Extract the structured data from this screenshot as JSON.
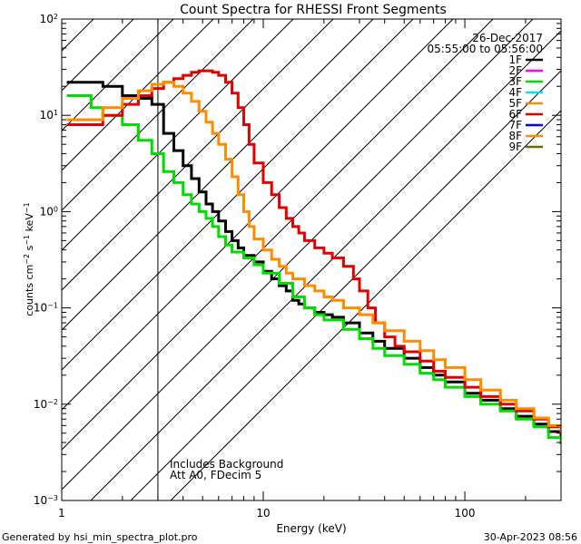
{
  "chart_data": {
    "type": "line",
    "title": "Count Spectra for RHESSI Front Segments",
    "xlabel": "Energy (keV)",
    "ylabel": "counts cm⁻² s⁻¹ keV⁻¹",
    "ylabel_parts": {
      "base": "counts cm",
      "e1": "−2",
      "mid": " s",
      "e2": "−1",
      "end": " keV",
      "e3": "−1"
    },
    "xscale": "log",
    "yscale": "log",
    "xlim": [
      1,
      300
    ],
    "ylim": [
      0.001,
      100
    ],
    "x_ticks": [
      {
        "value": 1,
        "label": "1"
      },
      {
        "value": 10,
        "label": "10"
      },
      {
        "value": 100,
        "label": "100"
      }
    ],
    "y_ticks": [
      {
        "value": 0.001,
        "base": "10",
        "exp": "−3"
      },
      {
        "value": 0.01,
        "base": "10",
        "exp": "−2"
      },
      {
        "value": 0.1,
        "base": "10",
        "exp": "−1"
      },
      {
        "value": 1,
        "base": "10",
        "exp": "0"
      },
      {
        "value": 10,
        "base": "10",
        "exp": "1"
      },
      {
        "value": 100,
        "base": "10",
        "exp": "2"
      }
    ],
    "hatched_region": {
      "x_from": 1,
      "x_to": 3
    },
    "date": "26-Dec-2017",
    "time_range": "05:55:00 to 05:56:00",
    "legend_position": "top-right",
    "legend": [
      {
        "label": "1F",
        "color": "#000000"
      },
      {
        "label": "2F",
        "color": "#ff00ff"
      },
      {
        "label": "3F",
        "color": "#00dd00"
      },
      {
        "label": "4F",
        "color": "#00e0ff"
      },
      {
        "label": "5F",
        "color": "#ff8c00"
      },
      {
        "label": "6F",
        "color": "#e00000"
      },
      {
        "label": "7F",
        "color": "#0000ee"
      },
      {
        "label": "8F",
        "color": "#ff8c00"
      },
      {
        "label": "9F",
        "color": "#6b6b00"
      }
    ],
    "annotations": [
      "Includes Background",
      "Att A0, FDecim 5"
    ],
    "series": [
      {
        "name": "1F",
        "color": "#000000",
        "points": [
          [
            1.2,
            22
          ],
          [
            1.6,
            20
          ],
          [
            2.0,
            16
          ],
          [
            2.4,
            15
          ],
          [
            2.8,
            13
          ],
          [
            3.2,
            6.5
          ],
          [
            3.6,
            4.3
          ],
          [
            4.0,
            3.0
          ],
          [
            4.4,
            2.2
          ],
          [
            4.8,
            1.6
          ],
          [
            5.2,
            1.2
          ],
          [
            5.6,
            1.0
          ],
          [
            6.0,
            0.8
          ],
          [
            6.5,
            0.62
          ],
          [
            7.0,
            0.5
          ],
          [
            7.5,
            0.42
          ],
          [
            8.0,
            0.35
          ],
          [
            9.0,
            0.3
          ],
          [
            10,
            0.24
          ],
          [
            11,
            0.2
          ],
          [
            12,
            0.17
          ],
          [
            13,
            0.15
          ],
          [
            14,
            0.12
          ],
          [
            15,
            0.11
          ],
          [
            16,
            0.1
          ],
          [
            18,
            0.09
          ],
          [
            20,
            0.085
          ],
          [
            22,
            0.08
          ],
          [
            25,
            0.07
          ],
          [
            30,
            0.055
          ],
          [
            35,
            0.045
          ],
          [
            40,
            0.038
          ],
          [
            50,
            0.03
          ],
          [
            60,
            0.024
          ],
          [
            70,
            0.02
          ],
          [
            80,
            0.017
          ],
          [
            100,
            0.013
          ],
          [
            120,
            0.011
          ],
          [
            150,
            0.009
          ],
          [
            180,
            0.0075
          ],
          [
            220,
            0.0062
          ],
          [
            260,
            0.0052
          ],
          [
            300,
            0.0045
          ]
        ]
      },
      {
        "name": "3F",
        "color": "#00dd00",
        "points": [
          [
            1.2,
            16
          ],
          [
            1.4,
            12
          ],
          [
            1.6,
            10
          ],
          [
            2.0,
            8
          ],
          [
            2.4,
            5.5
          ],
          [
            2.8,
            4.0
          ],
          [
            3.2,
            2.6
          ],
          [
            3.6,
            2.0
          ],
          [
            4.0,
            1.5
          ],
          [
            4.4,
            1.2
          ],
          [
            4.8,
            1.0
          ],
          [
            5.2,
            0.85
          ],
          [
            5.6,
            0.7
          ],
          [
            6.0,
            0.55
          ],
          [
            6.5,
            0.45
          ],
          [
            7.0,
            0.38
          ],
          [
            8.0,
            0.33
          ],
          [
            9.0,
            0.28
          ],
          [
            10,
            0.23
          ],
          [
            12,
            0.18
          ],
          [
            14,
            0.13
          ],
          [
            16,
            0.1
          ],
          [
            18,
            0.085
          ],
          [
            20,
            0.075
          ],
          [
            25,
            0.06
          ],
          [
            30,
            0.048
          ],
          [
            35,
            0.038
          ],
          [
            40,
            0.032
          ],
          [
            50,
            0.026
          ],
          [
            60,
            0.021
          ],
          [
            70,
            0.018
          ],
          [
            80,
            0.015
          ],
          [
            100,
            0.012
          ],
          [
            120,
            0.01
          ],
          [
            150,
            0.0085
          ],
          [
            180,
            0.007
          ],
          [
            220,
            0.0058
          ],
          [
            260,
            0.0045
          ],
          [
            300,
            0.0038
          ]
        ]
      },
      {
        "name": "6F",
        "color": "#e00000",
        "points": [
          [
            1.2,
            8
          ],
          [
            1.6,
            10
          ],
          [
            2.0,
            13
          ],
          [
            2.4,
            16
          ],
          [
            2.8,
            19
          ],
          [
            3.2,
            22
          ],
          [
            3.6,
            24
          ],
          [
            4.0,
            26
          ],
          [
            4.4,
            28
          ],
          [
            4.8,
            29
          ],
          [
            5.2,
            29
          ],
          [
            5.6,
            28
          ],
          [
            6.0,
            26
          ],
          [
            6.5,
            22
          ],
          [
            7.0,
            17
          ],
          [
            7.5,
            12
          ],
          [
            8.0,
            8
          ],
          [
            8.5,
            5
          ],
          [
            9.0,
            3.2
          ],
          [
            10,
            2.0
          ],
          [
            11,
            1.5
          ],
          [
            12,
            1.1
          ],
          [
            13,
            0.85
          ],
          [
            14,
            0.7
          ],
          [
            15,
            0.6
          ],
          [
            16,
            0.5
          ],
          [
            18,
            0.42
          ],
          [
            20,
            0.37
          ],
          [
            22,
            0.33
          ],
          [
            25,
            0.27
          ],
          [
            28,
            0.2
          ],
          [
            30,
            0.15
          ],
          [
            33,
            0.1
          ],
          [
            36,
            0.07
          ],
          [
            40,
            0.05
          ],
          [
            45,
            0.04
          ],
          [
            50,
            0.035
          ],
          [
            60,
            0.028
          ],
          [
            70,
            0.022
          ],
          [
            80,
            0.019
          ],
          [
            100,
            0.015
          ],
          [
            120,
            0.012
          ],
          [
            150,
            0.01
          ],
          [
            180,
            0.0085
          ],
          [
            220,
            0.007
          ],
          [
            260,
            0.0058
          ],
          [
            300,
            0.0048
          ]
        ]
      },
      {
        "name": "5F",
        "color": "#ff8c00",
        "points": [
          [
            1.2,
            9
          ],
          [
            1.6,
            12
          ],
          [
            2.0,
            15
          ],
          [
            2.4,
            18
          ],
          [
            2.8,
            21
          ],
          [
            3.2,
            22
          ],
          [
            3.6,
            20
          ],
          [
            4.0,
            17
          ],
          [
            4.4,
            14
          ],
          [
            4.8,
            11
          ],
          [
            5.2,
            8.5
          ],
          [
            5.6,
            6.5
          ],
          [
            6.0,
            5.0
          ],
          [
            6.5,
            3.5
          ],
          [
            7.0,
            2.3
          ],
          [
            7.5,
            1.5
          ],
          [
            8.0,
            1.0
          ],
          [
            8.5,
            0.7
          ],
          [
            9.0,
            0.52
          ],
          [
            10,
            0.4
          ],
          [
            11,
            0.32
          ],
          [
            12,
            0.27
          ],
          [
            13,
            0.23
          ],
          [
            14,
            0.2
          ],
          [
            16,
            0.17
          ],
          [
            18,
            0.15
          ],
          [
            20,
            0.13
          ],
          [
            22,
            0.12
          ],
          [
            25,
            0.1
          ],
          [
            30,
            0.085
          ],
          [
            35,
            0.07
          ],
          [
            40,
            0.058
          ],
          [
            50,
            0.045
          ],
          [
            60,
            0.036
          ],
          [
            70,
            0.029
          ],
          [
            80,
            0.024
          ],
          [
            100,
            0.018
          ],
          [
            120,
            0.014
          ],
          [
            150,
            0.011
          ],
          [
            180,
            0.009
          ],
          [
            220,
            0.0072
          ],
          [
            260,
            0.006
          ],
          [
            300,
            0.005
          ]
        ]
      }
    ]
  },
  "footer": {
    "generator": "Generated by hsi_min_spectra_plot.pro",
    "timestamp": "30-Apr-2023 08:56"
  }
}
